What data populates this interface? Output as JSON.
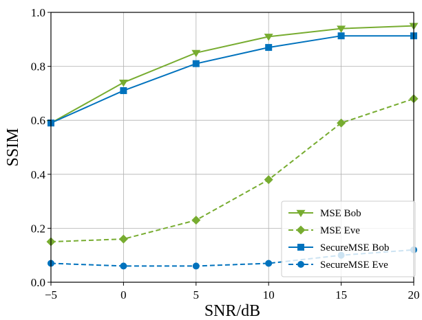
{
  "chart_data": {
    "type": "line",
    "title": "",
    "xlabel": "SNR/dB",
    "ylabel": "SSIM",
    "x": [
      -5,
      0,
      5,
      10,
      15,
      20
    ],
    "xlim": [
      -5,
      20
    ],
    "ylim": [
      0,
      1.0
    ],
    "x_ticks": [
      -5,
      0,
      5,
      10,
      15,
      20
    ],
    "x_tick_labels": [
      "−5",
      "0",
      "5",
      "10",
      "15",
      "20"
    ],
    "y_ticks": [
      0.0,
      0.2,
      0.4,
      0.6,
      0.8,
      1.0
    ],
    "y_tick_labels": [
      "0.0",
      "0.2",
      "0.4",
      "0.6",
      "0.8",
      "1.0"
    ],
    "grid": true,
    "legend_position": "bottom-right",
    "series": [
      {
        "name": "MSE Bob",
        "values": [
          0.59,
          0.74,
          0.85,
          0.91,
          0.94,
          0.95
        ],
        "color": "#77ac30",
        "linestyle": "solid",
        "marker": "triangle-down"
      },
      {
        "name": "MSE Eve",
        "values": [
          0.15,
          0.16,
          0.23,
          0.38,
          0.59,
          0.68
        ],
        "color": "#77ac30",
        "linestyle": "dashed",
        "marker": "diamond"
      },
      {
        "name": "SecureMSE Bob",
        "values": [
          0.59,
          0.71,
          0.81,
          0.87,
          0.913,
          0.913
        ],
        "color": "#0072bd",
        "linestyle": "solid",
        "marker": "square"
      },
      {
        "name": "SecureMSE Eve",
        "values": [
          0.07,
          0.06,
          0.06,
          0.07,
          0.1,
          0.12
        ],
        "color": "#0072bd",
        "linestyle": "dashed",
        "marker": "circle"
      }
    ]
  }
}
